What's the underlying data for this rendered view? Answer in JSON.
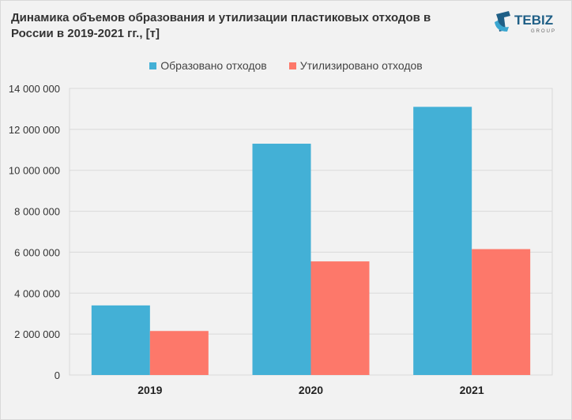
{
  "title": "Динамика объемов образования и утилизации пластиковых отходов в России в 2019-2021 гг., [т]",
  "logo": {
    "text": "TEBIZ",
    "subtext": "GROUP"
  },
  "colors": {
    "generated": "#43b0d6",
    "utilized": "#fd786a",
    "grid": "#d9d9d9",
    "plot_bg": "#f2f2f2"
  },
  "chart_data": {
    "type": "bar",
    "title": "Динамика объемов образования и утилизации пластиковых отходов в России в 2019-2021 гг., [т]",
    "categories": [
      "2019",
      "2020",
      "2021"
    ],
    "series": [
      {
        "name": "Образовано отходов",
        "values": [
          3400000,
          11300000,
          13100000
        ]
      },
      {
        "name": "Утилизировано отходов",
        "values": [
          2150000,
          5550000,
          6150000
        ]
      }
    ],
    "ylim": [
      0,
      14000000
    ],
    "yticks": [
      0,
      2000000,
      4000000,
      6000000,
      8000000,
      10000000,
      12000000,
      14000000
    ],
    "ytick_labels": [
      "0",
      "2 000 000",
      "4 000 000",
      "6 000 000",
      "8 000 000",
      "10 000 000",
      "12 000 000",
      "14 000 000"
    ],
    "xlabel": "",
    "ylabel": "",
    "grid": true,
    "legend_position": "top-center"
  }
}
